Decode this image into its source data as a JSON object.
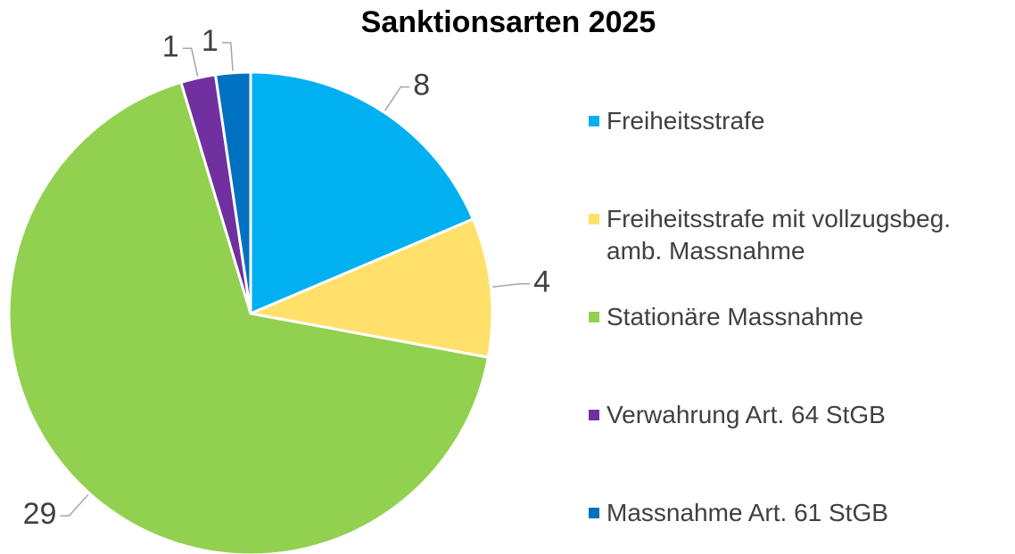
{
  "chart_data": {
    "type": "pie",
    "title": "Sanktionsarten 2025",
    "categories": [
      "Freiheitsstrafe",
      "Freiheitsstrafe mit vollzugsbeg. amb. Massnahme",
      "Stationäre Massnahme",
      "Verwahrung Art. 64 StGB",
      "Massnahme Art. 61 StGB"
    ],
    "values": [
      8,
      4,
      29,
      1,
      1
    ],
    "colors": [
      "#00b0f0",
      "#ffe06b",
      "#92d050",
      "#7030a0",
      "#0070c0"
    ],
    "legend": "right"
  }
}
